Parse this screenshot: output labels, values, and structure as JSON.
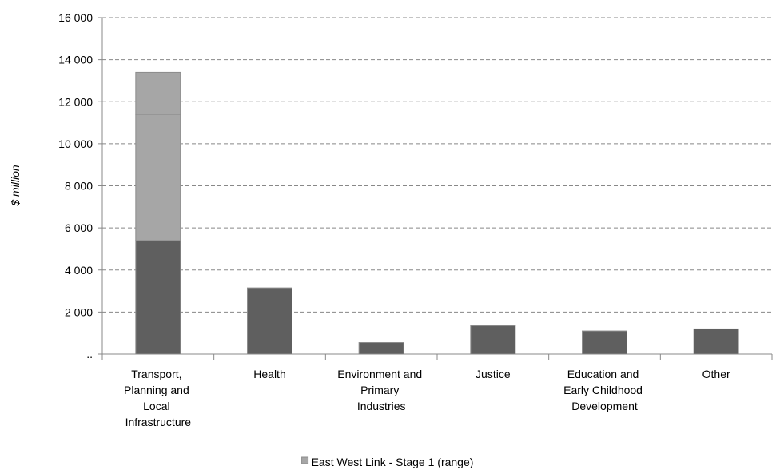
{
  "chart_data": {
    "type": "bar",
    "stacked": true,
    "y_label": "$ million",
    "categories": [
      "Transport, Planning and Local Infrastructure",
      "Health",
      "Environment and Primary Industries",
      "Justice",
      "Education and Early Childhood Development",
      "Other"
    ],
    "series": [
      {
        "color": "#5f5f5f",
        "values": [
          5400,
          3150,
          550,
          1350,
          1100,
          1200
        ]
      },
      {
        "name": "East West Link - Stage 1 (range)",
        "color": "#a6a6a6",
        "values": [
          6000,
          null,
          null,
          null,
          null,
          null
        ]
      },
      {
        "color": "#a6a6a6",
        "values": [
          2000,
          null,
          null,
          null,
          null,
          null
        ]
      }
    ],
    "ylim": [
      0,
      16000
    ],
    "yticks": [
      {
        "value": 0,
        "label": ".."
      },
      {
        "value": 2000,
        "label": "2 000"
      },
      {
        "value": 4000,
        "label": "4 000"
      },
      {
        "value": 6000,
        "label": "6 000"
      },
      {
        "value": 8000,
        "label": "8 000"
      },
      {
        "value": 10000,
        "label": "10 000"
      },
      {
        "value": 12000,
        "label": "12 000"
      },
      {
        "value": 14000,
        "label": "14 000"
      },
      {
        "value": 16000,
        "label": "16 000"
      }
    ],
    "grid": true,
    "legend": "bottom"
  }
}
